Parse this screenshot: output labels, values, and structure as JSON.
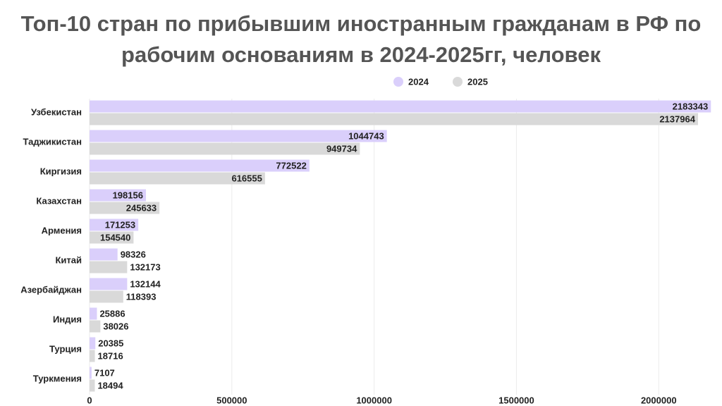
{
  "chart_data": {
    "type": "hbar",
    "title": "Топ-10 стран по прибывшим иностранным гражданам в РФ по рабочим основаниям в 2024-2025гг, человек",
    "categories": [
      "Узбекистан",
      "Таджикистан",
      "Киргизия",
      "Казахстан",
      "Армения",
      "Китай",
      "Азербайджан",
      "Индия",
      "Турция",
      "Туркмения"
    ],
    "series": [
      {
        "name": "2024",
        "color": "#dacffb",
        "values": [
          2183343,
          1044743,
          772522,
          198156,
          171253,
          98326,
          132144,
          25886,
          20385,
          7107
        ]
      },
      {
        "name": "2025",
        "color": "#d9d9d9",
        "values": [
          2137964,
          949734,
          616555,
          245633,
          154540,
          132173,
          118393,
          38026,
          18716,
          18494
        ]
      }
    ],
    "xlim": [
      0,
      2200000
    ],
    "xticks": [
      0,
      500000,
      1000000,
      1500000,
      2000000
    ],
    "grid": true,
    "legend": "top"
  }
}
